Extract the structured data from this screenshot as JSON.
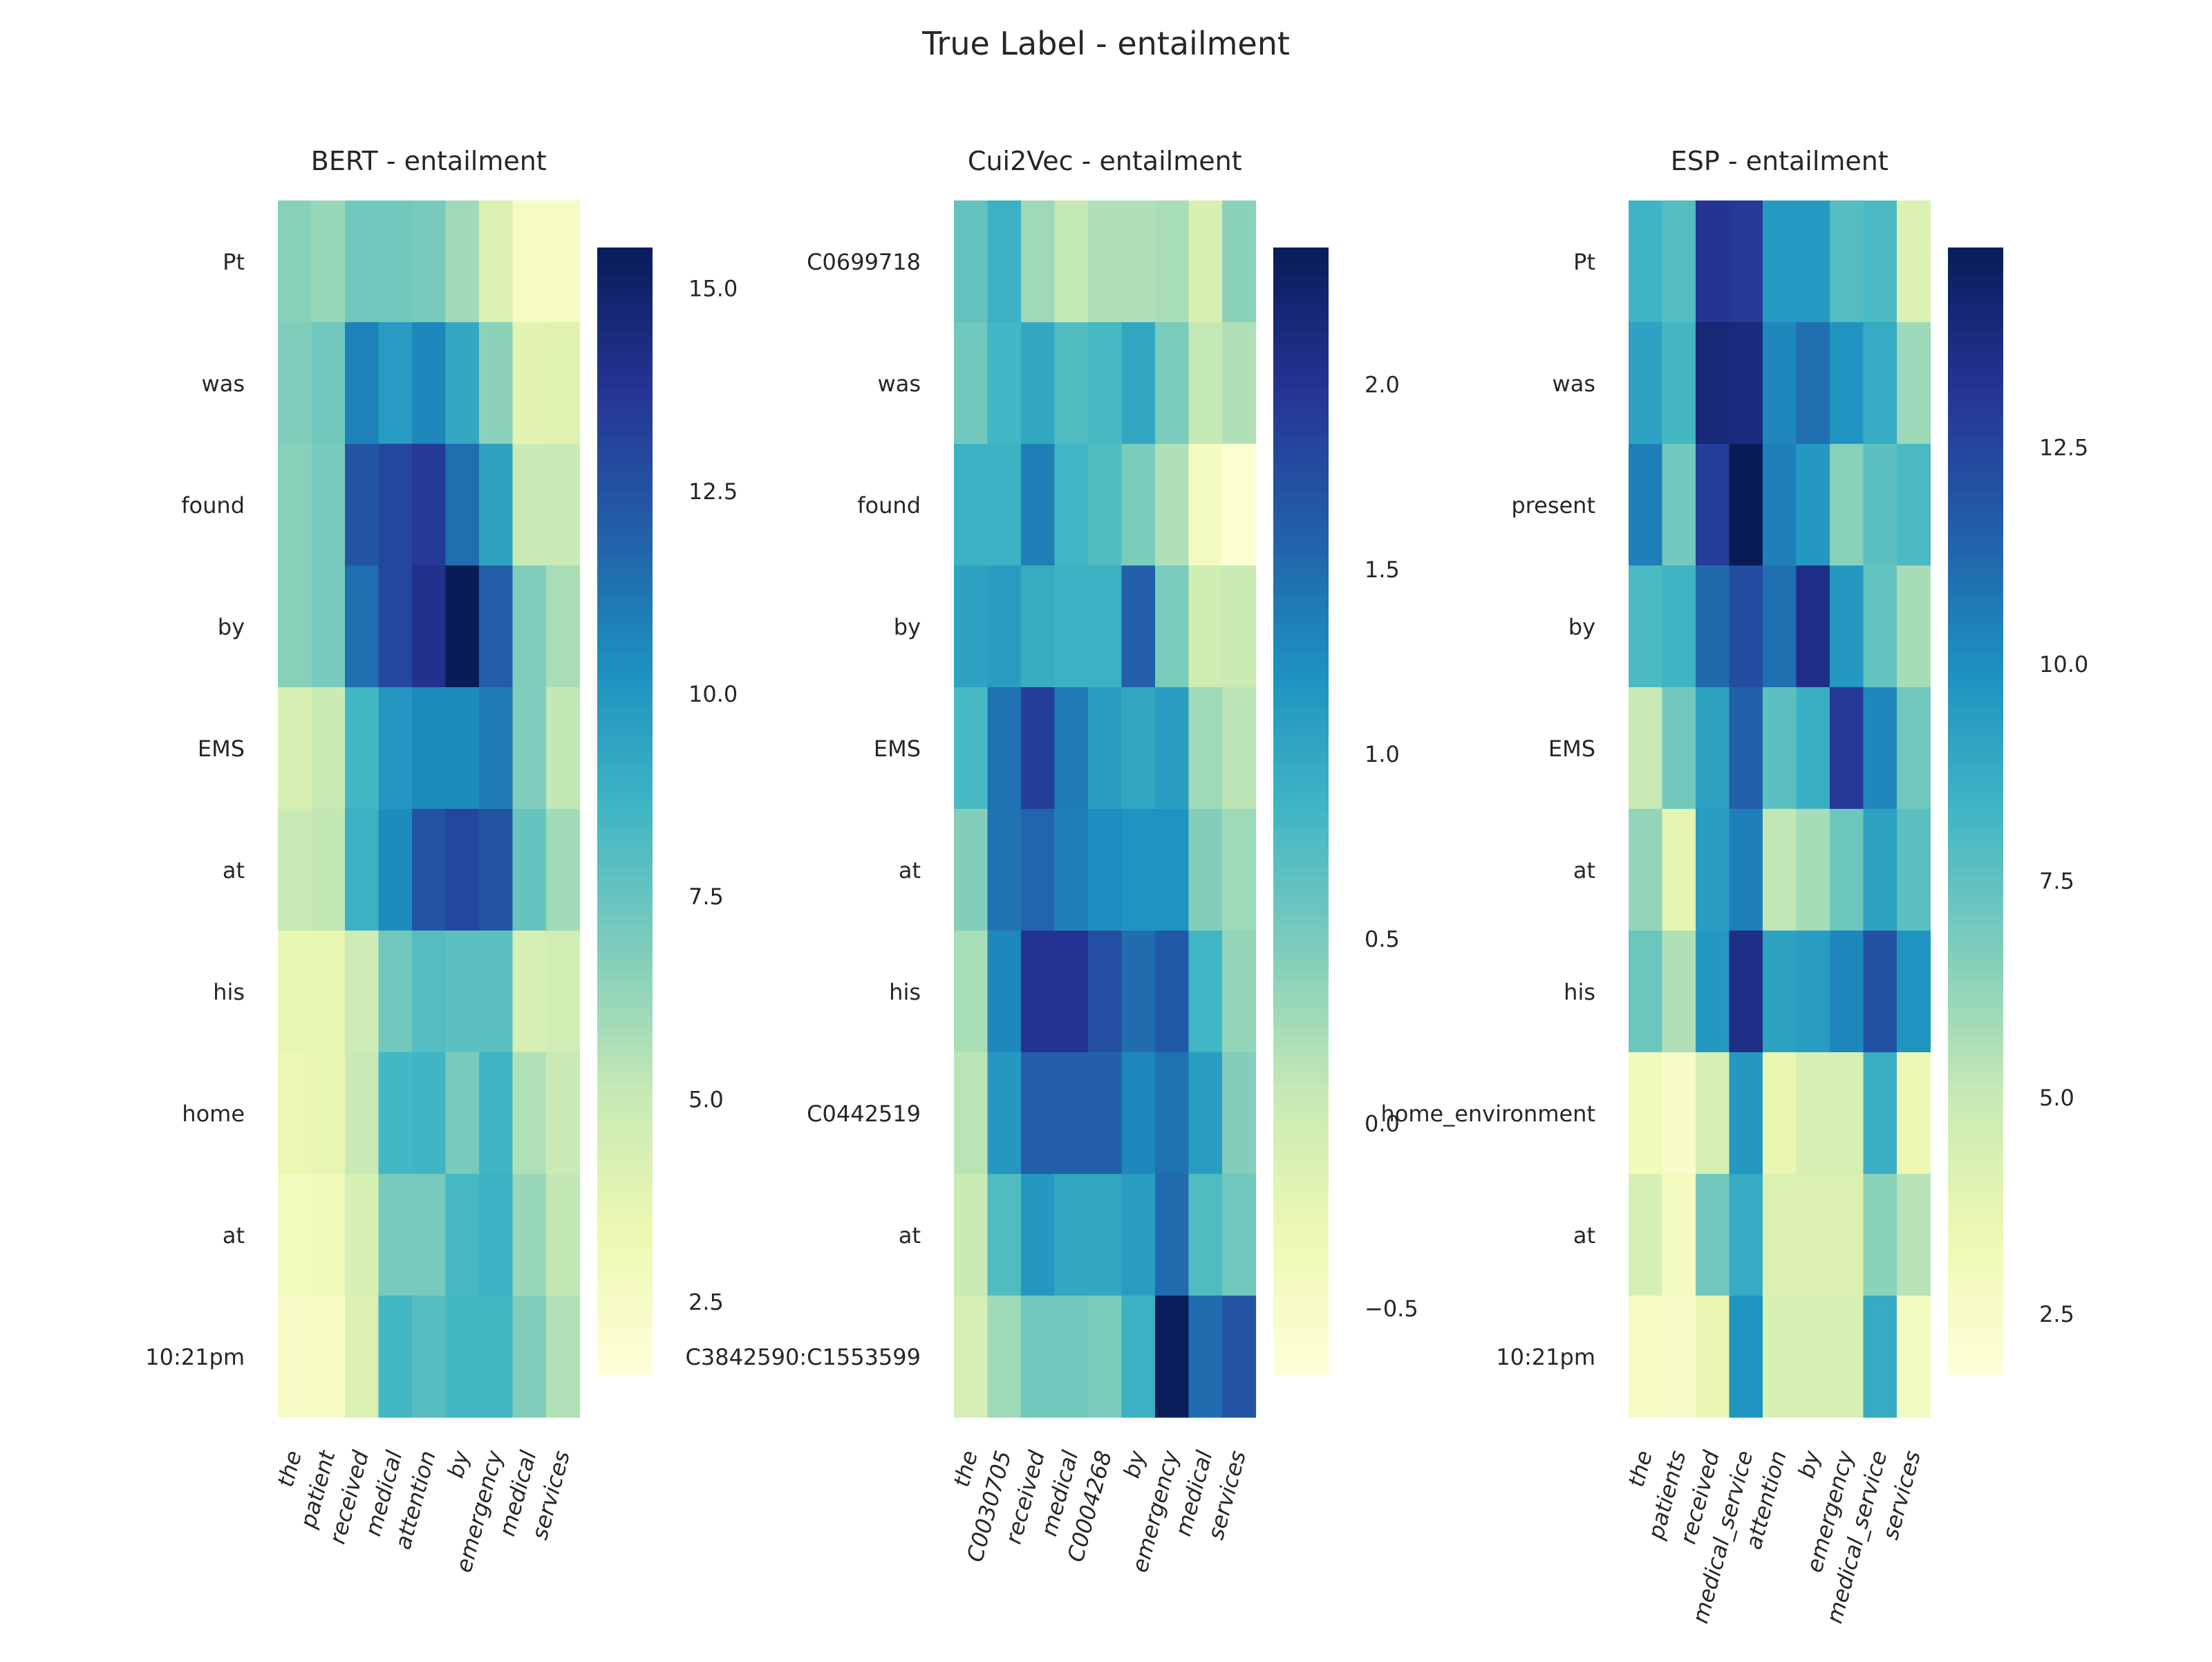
{
  "figure": {
    "title": "True Label - entailment"
  },
  "colormap": [
    "#ffffd9",
    "#edf8b1",
    "#c7e9b4",
    "#7fcdbb",
    "#41b6c4",
    "#1d91c0",
    "#225ea8",
    "#253494",
    "#081d58"
  ],
  "chart_data": [
    {
      "type": "heatmap",
      "title": "BERT - entailment",
      "rows": [
        "Pt",
        "was",
        "found",
        "by",
        "EMS",
        "at",
        "his",
        "home",
        "at",
        "10:21pm"
      ],
      "cols": [
        "the",
        "patient",
        "received",
        "medical",
        "attention",
        "by",
        "emergency",
        "medical",
        "services"
      ],
      "vmin": 1.6,
      "vmax": 15.5,
      "colorbar_ticks": [
        "2.5",
        "5.0",
        "7.5",
        "10.0",
        "12.5",
        "15.0"
      ],
      "values": [
        [
          6.6,
          6.2,
          7.2,
          7.2,
          7.0,
          6.0,
          4.2,
          2.6,
          2.6
        ],
        [
          6.8,
          7.2,
          10.8,
          9.8,
          10.6,
          9.2,
          6.5,
          3.8,
          4.0
        ],
        [
          6.6,
          7.0,
          12.5,
          13.0,
          13.5,
          11.5,
          9.5,
          5.0,
          5.0
        ],
        [
          6.6,
          7.0,
          11.5,
          13.0,
          14.0,
          15.5,
          12.0,
          6.8,
          5.8
        ],
        [
          4.4,
          4.9,
          8.5,
          10.0,
          10.5,
          10.5,
          11.0,
          6.8,
          5.2
        ],
        [
          5.0,
          5.2,
          8.8,
          10.5,
          12.5,
          13.0,
          12.5,
          7.5,
          6.0
        ],
        [
          3.6,
          3.6,
          4.8,
          7.2,
          8.0,
          7.8,
          7.8,
          4.4,
          4.6
        ],
        [
          3.4,
          3.6,
          5.0,
          8.5,
          8.6,
          7.0,
          8.6,
          5.6,
          5.0
        ],
        [
          2.8,
          3.0,
          4.4,
          7.0,
          7.0,
          8.4,
          8.8,
          6.2,
          5.2
        ],
        [
          2.4,
          2.5,
          4.2,
          8.5,
          8.0,
          8.5,
          8.5,
          6.8,
          5.6
        ]
      ]
    },
    {
      "type": "heatmap",
      "title": "Cui2Vec - entailment",
      "rows": [
        "C0699718",
        "was",
        "found",
        "by",
        "EMS",
        "at",
        "his",
        "C0442519",
        "at",
        "C3842590:C1553599"
      ],
      "cols": [
        "the",
        "C0030705",
        "received",
        "medical",
        "C0004268",
        "by",
        "emergency",
        "medical",
        "services"
      ],
      "vmin": -0.68,
      "vmax": 2.37,
      "colorbar_ticks": [
        "−0.5",
        "0.0",
        "0.5",
        "1.0",
        "1.5",
        "2.0"
      ],
      "values": [
        [
          0.65,
          0.9,
          0.3,
          0.1,
          0.2,
          0.2,
          0.25,
          -0.1,
          0.4
        ],
        [
          0.55,
          0.85,
          1.0,
          0.75,
          0.8,
          1.0,
          0.5,
          0.1,
          0.2
        ],
        [
          0.9,
          0.9,
          1.35,
          0.85,
          0.75,
          0.5,
          0.2,
          -0.45,
          -0.6
        ],
        [
          1.05,
          1.1,
          0.95,
          0.9,
          0.9,
          1.6,
          0.5,
          0.0,
          0.05
        ],
        [
          0.8,
          1.45,
          1.9,
          1.4,
          1.1,
          1.0,
          1.1,
          0.3,
          0.15
        ],
        [
          0.45,
          1.45,
          1.55,
          1.35,
          1.25,
          1.2,
          1.2,
          0.45,
          0.3
        ],
        [
          0.25,
          1.3,
          2.0,
          2.0,
          1.75,
          1.5,
          1.65,
          0.85,
          0.35
        ],
        [
          0.15,
          1.15,
          1.6,
          1.6,
          1.6,
          1.3,
          1.45,
          1.1,
          0.45
        ],
        [
          0.05,
          0.75,
          1.15,
          1.0,
          1.0,
          1.1,
          1.5,
          0.75,
          0.55
        ],
        [
          -0.05,
          0.3,
          0.55,
          0.55,
          0.5,
          0.9,
          2.35,
          1.5,
          1.7
        ]
      ]
    },
    {
      "type": "heatmap",
      "title": "ESP - entailment",
      "rows": [
        "Pt",
        "was",
        "present",
        "by",
        "EMS",
        "at",
        "his",
        "home_environment",
        "at",
        "10:21pm"
      ],
      "cols": [
        "the",
        "patients",
        "received",
        "medical_service",
        "attention",
        "by",
        "emergency",
        "medical_service",
        "services"
      ],
      "vmin": 1.8,
      "vmax": 14.8,
      "colorbar_ticks": [
        "2.5",
        "5.0",
        "7.5",
        "10.0",
        "12.5"
      ],
      "values": [
        [
          8.4,
          7.8,
          13.2,
          13.0,
          9.5,
          9.5,
          7.8,
          8.0,
          4.2
        ],
        [
          9.2,
          8.2,
          14.0,
          13.8,
          10.2,
          11.0,
          9.8,
          8.8,
          6.0
        ],
        [
          10.5,
          7.0,
          12.8,
          14.8,
          10.5,
          9.6,
          6.5,
          7.6,
          8.0
        ],
        [
          8.0,
          8.4,
          11.2,
          12.2,
          11.0,
          13.5,
          9.6,
          7.4,
          5.8
        ],
        [
          5.0,
          7.0,
          9.2,
          11.5,
          7.6,
          8.6,
          13.0,
          10.2,
          7.0
        ],
        [
          6.2,
          3.8,
          9.4,
          10.5,
          5.2,
          5.8,
          7.2,
          9.2,
          7.6
        ],
        [
          7.2,
          5.6,
          9.6,
          13.5,
          9.2,
          9.4,
          10.2,
          12.0,
          9.8
        ],
        [
          3.0,
          2.4,
          4.4,
          9.6,
          3.6,
          4.4,
          4.4,
          8.6,
          3.4
        ],
        [
          4.4,
          2.8,
          7.0,
          8.8,
          4.2,
          4.2,
          4.2,
          6.4,
          5.4
        ],
        [
          2.7,
          2.5,
          3.6,
          9.8,
          4.4,
          4.4,
          4.4,
          8.8,
          2.8
        ]
      ]
    }
  ]
}
